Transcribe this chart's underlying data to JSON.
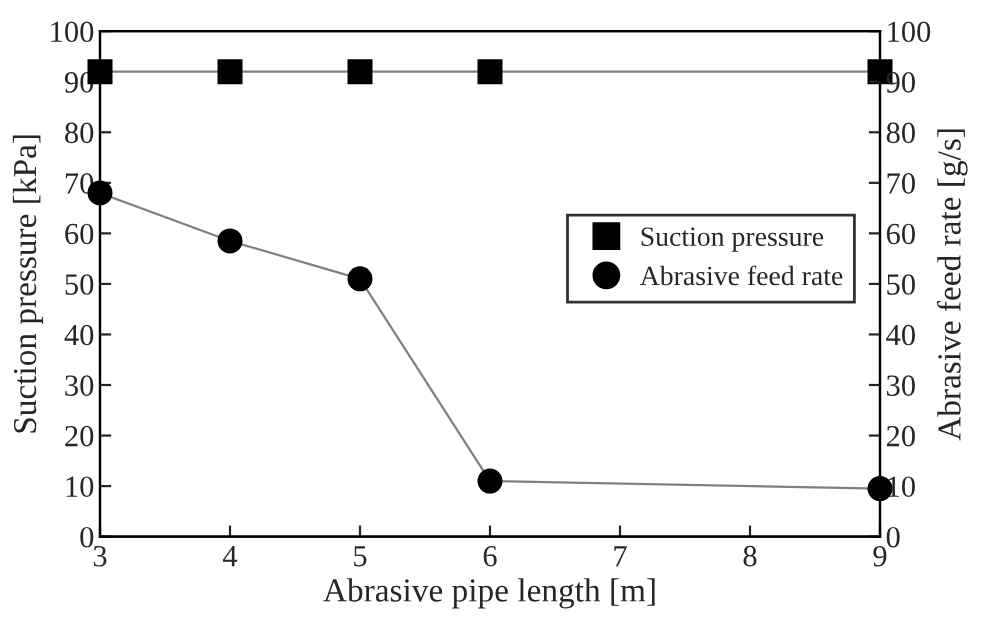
{
  "chart_data": {
    "type": "line",
    "xlabel": "Abrasive pipe length [m]",
    "ylabel": "Suction pressure [kPa]",
    "y2label": "Abrasive feed rate [g/s]",
    "x": [
      3,
      4,
      5,
      6,
      9
    ],
    "series": [
      {
        "name": "Suction pressure",
        "color": "#000000",
        "marker": "square",
        "values": [
          92,
          92,
          92,
          92,
          92
        ]
      },
      {
        "name": "Abrasive feed rate",
        "color": "#000000",
        "marker": "circle",
        "axis": "y2",
        "values": [
          68,
          58.5,
          51,
          11,
          9.5
        ]
      }
    ],
    "xlim": [
      3,
      9
    ],
    "xticks": [
      3,
      4,
      5,
      6,
      7,
      8,
      9
    ],
    "ylim": [
      0,
      100
    ],
    "yticks": [
      0,
      10,
      20,
      30,
      40,
      50,
      60,
      70,
      80,
      90,
      100
    ],
    "y2lim": [
      0,
      100
    ],
    "y2ticks": [
      0,
      10,
      20,
      30,
      40,
      50,
      60,
      70,
      80,
      90,
      100
    ],
    "legend": "right",
    "grid": false
  }
}
